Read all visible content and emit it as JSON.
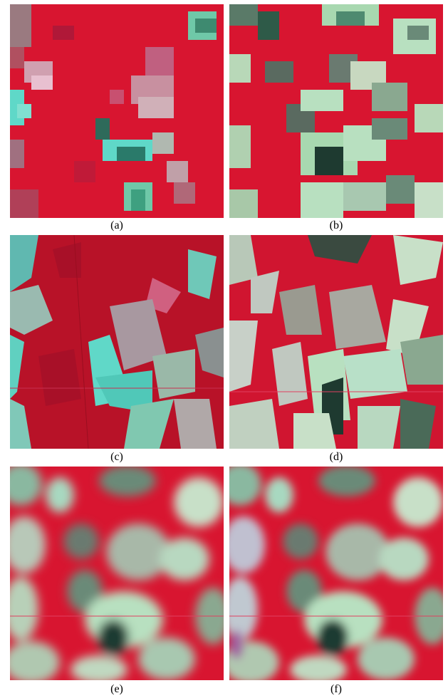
{
  "figure": {
    "panels": [
      {
        "id": "a",
        "caption": "(a)",
        "style": "coarse-pixelated-infrared"
      },
      {
        "id": "b",
        "caption": "(b)",
        "style": "coarse-pixelated-infrared"
      },
      {
        "id": "c",
        "caption": "(c)",
        "style": "fine-resolution-infrared"
      },
      {
        "id": "d",
        "caption": "(d)",
        "style": "fine-resolution-infrared"
      },
      {
        "id": "e",
        "caption": "(e)",
        "style": "blurred-fused-infrared"
      },
      {
        "id": "f",
        "caption": "(f)",
        "style": "blurred-fused-infrared"
      }
    ],
    "colors": {
      "vegetation_red": "#d81530",
      "dark_red": "#a8102a",
      "field_cyan": "#5fd8c8",
      "field_pale_green": "#b8e0c0",
      "field_grey": "#8a8a80",
      "field_dark_green": "#1e4a3a",
      "field_pink": "#e8a0b0"
    }
  }
}
